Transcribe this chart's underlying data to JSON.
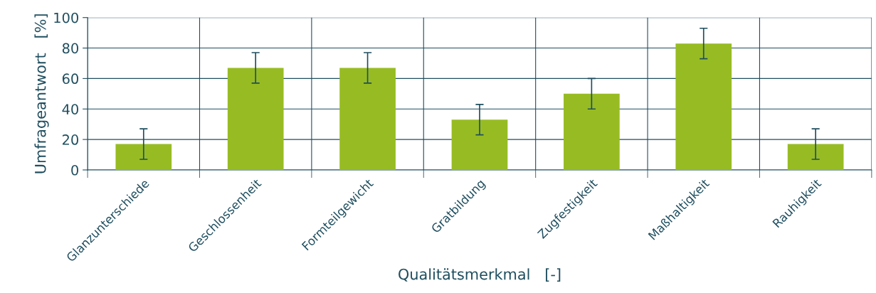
{
  "chart_data": {
    "type": "bar",
    "xlabel": "Qualitätsmerkmal   [-]",
    "ylabel": "Umfrageantwort   [%]",
    "categories": [
      "Glanzunterschiede",
      "Geschlossenheit",
      "Formteilgewicht",
      "Gratbildung",
      "Zugfestigkeit",
      "Maßhaltigkeit",
      "Rauhigkeit"
    ],
    "values": [
      17,
      67,
      67,
      33,
      50,
      83,
      17
    ],
    "errors": [
      10,
      10,
      10,
      10,
      10,
      10,
      10
    ],
    "color": "#97bc23",
    "ylim": [
      0,
      100
    ],
    "yticks": [
      0,
      20,
      40,
      60,
      80,
      100
    ],
    "grid": true
  }
}
